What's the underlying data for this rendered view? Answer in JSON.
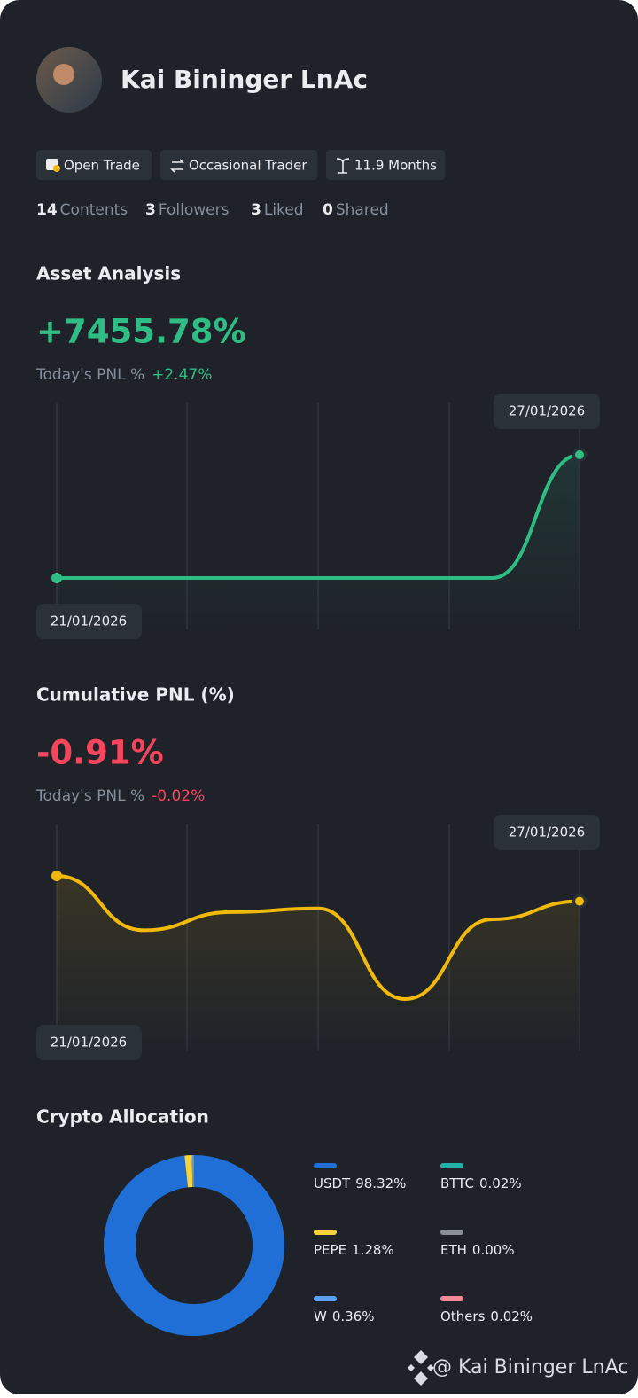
{
  "profile": {
    "name": "Kai Bininger LnAc",
    "tags": [
      "Open Trade",
      "Occasional Trader",
      "11.9 Months"
    ],
    "stats": [
      {
        "count": "14",
        "label": "Contents"
      },
      {
        "count": "3",
        "label": "Followers"
      },
      {
        "count": "3",
        "label": "Liked"
      },
      {
        "count": "0",
        "label": "Shared"
      }
    ]
  },
  "chart_data": [
    {
      "type": "line",
      "title": "Asset Analysis",
      "headline": "+7455.78%",
      "headline_color": "#2ebd85",
      "pnl_label": "Today's PNL %",
      "pnl_change": "+2.47%",
      "categories": [
        "21/01/2026",
        null,
        null,
        null,
        null,
        null,
        "27/01/2026"
      ],
      "values": [
        0,
        0,
        0,
        0,
        0,
        0,
        7455.78
      ],
      "color": "#2ebd85"
    },
    {
      "type": "line",
      "title": "Cumulative PNL (%)",
      "headline": "-0.91%",
      "headline_color": "#f6465d",
      "pnl_label": "Today's PNL %",
      "pnl_change": "-0.02%",
      "categories": [
        "21/01/2026",
        null,
        null,
        null,
        null,
        null,
        "27/01/2026"
      ],
      "values": [
        -0.77,
        -1.07,
        -0.97,
        -0.95,
        -1.45,
        -1.01,
        -0.91
      ],
      "color": "#f0b90b"
    },
    {
      "type": "donut",
      "title": "Crypto Allocation",
      "categories": [
        "USDT",
        "PEPE",
        "W",
        "BTTC",
        "ETH",
        "Others"
      ],
      "values": [
        98.32,
        1.28,
        0.36,
        0.02,
        0.0,
        0.02
      ],
      "value_labels": [
        "98.32%",
        "1.28%",
        "0.36%",
        "0.02%",
        "0.00%",
        "0.02%"
      ],
      "colors": [
        "#1f6fd6",
        "#f5d33a",
        "#5aa0f0",
        "#1eb3a6",
        "#8a8f98",
        "#f28b95"
      ]
    }
  ],
  "footer": "@ Kai Bininger LnAc"
}
